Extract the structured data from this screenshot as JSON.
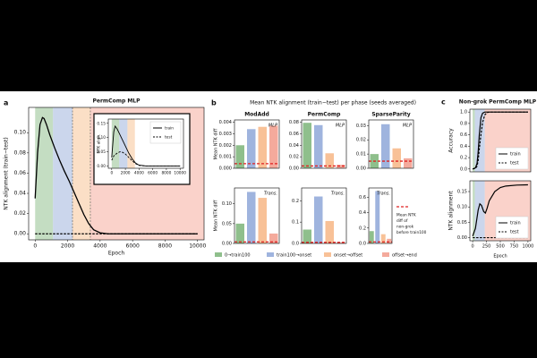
{
  "chart_data": [
    {
      "type": "line",
      "panel_label": "a",
      "title": "PermComp MLP",
      "xlabel": "Epoch",
      "ylabel": "NTK alignment (train−test)",
      "xlim": [
        -400,
        10400
      ],
      "ylim": [
        -0.006,
        0.125
      ],
      "xticks": [
        0,
        2000,
        4000,
        6000,
        8000,
        10000
      ],
      "yticks": [
        {
          "value": 0,
          "label": "0.00"
        },
        0.02,
        0.04,
        0.06,
        0.08,
        {
          "value": 0.1,
          "label": "0.10"
        }
      ],
      "phase_bounds": [
        0,
        1100,
        2300,
        3400,
        10400
      ],
      "phase_colors": [
        "#9cc69a",
        "#a9badf",
        "#f9c9a0",
        "#f7b4a6"
      ],
      "vlines": [
        2300,
        3400
      ],
      "series": [
        {
          "color": "#000000",
          "style": "solid",
          "x": [
            0,
            150,
            300,
            450,
            550,
            700,
            900,
            1200,
            1500,
            1800,
            2100,
            2400,
            2700,
            3000,
            3300,
            3600,
            4000,
            4500,
            5000,
            6000,
            8000,
            10000
          ],
          "values": [
            0.035,
            0.08,
            0.108,
            0.115,
            0.114,
            0.108,
            0.098,
            0.085,
            0.073,
            0.062,
            0.052,
            0.041,
            0.03,
            0.019,
            0.01,
            0.004,
            0.001,
            0,
            0,
            0,
            0,
            0
          ]
        },
        {
          "color": "#000000",
          "style": "dashed",
          "x": [
            0,
            2000,
            4000,
            10000
          ],
          "values": [
            0,
            0,
            0,
            0
          ]
        }
      ]
    },
    {
      "type": "line",
      "ylabel": "NTK align.",
      "legend": "upper right",
      "xlim": [
        -500,
        10500
      ],
      "ylim": [
        -0.008,
        0.165
      ],
      "xticks": [
        0,
        2000,
        4000,
        6000,
        8000,
        10000
      ],
      "yticks": [
        {
          "value": 0,
          "label": "0.00"
        },
        0.05,
        {
          "value": 0.1,
          "label": "0.10"
        },
        0.15
      ],
      "phase_bounds": [
        0,
        1100,
        2300,
        3400,
        10500
      ],
      "phase_colors": [
        "#9cc69a",
        "#a9badf",
        "#f9c9a0",
        "#ffffff"
      ],
      "series": [
        {
          "name": "train",
          "color": "#000000",
          "style": "solid",
          "x": [
            0,
            300,
            500,
            800,
            1200,
            1600,
            2000,
            2500,
            3000,
            3500,
            4000,
            5000,
            6000,
            8000,
            10000
          ],
          "values": [
            0.03,
            0.12,
            0.14,
            0.13,
            0.11,
            0.09,
            0.07,
            0.045,
            0.025,
            0.01,
            0.003,
            0,
            0,
            0,
            0
          ]
        },
        {
          "name": "test",
          "color": "#000000",
          "style": "dashed",
          "x": [
            0,
            300,
            500,
            800,
            1200,
            1600,
            2000,
            2500,
            3000,
            3500,
            4000,
            5000,
            6000,
            8000,
            10000
          ],
          "values": [
            0.02,
            0.035,
            0.04,
            0.045,
            0.05,
            0.048,
            0.042,
            0.03,
            0.018,
            0.008,
            0.002,
            0,
            0,
            0,
            0
          ]
        }
      ]
    },
    {
      "type": "bar",
      "panel_label": "b",
      "title": "Mean NTK alignment (train−test) per phase (seeds averaged)",
      "categories": [
        "0→train100",
        "train100→onset",
        "onset→offset",
        "offset→end"
      ],
      "colors": [
        "#8fbf8c",
        "#9fb4de",
        "#f8c197",
        "#f4aa9c"
      ],
      "baseline_color": "#e02020",
      "baseline_label": [
        "Mean NTK",
        "diff of",
        "non-grok",
        "before train100"
      ],
      "subplots": [
        {
          "title": "ModAdd",
          "tag": "MLP",
          "ylabel": "Mean NTK diff",
          "ylim": [
            0,
            0.0042
          ],
          "yticks": [
            {
              "value": 0,
              "label": "0.000"
            },
            0.001,
            0.002,
            0.003,
            0.004
          ],
          "values": [
            0.002,
            0.0034,
            0.0036,
            0.0037
          ],
          "baseline": 0.0004
        },
        {
          "title": "PermComp",
          "tag": "MLP",
          "ylim": [
            0,
            0.084
          ],
          "yticks": [
            {
              "value": 0,
              "label": "0.00"
            },
            0.02,
            0.04,
            0.06,
            0.08
          ],
          "values": [
            0.079,
            0.075,
            0.026,
            0.006
          ],
          "baseline": 0.004
        },
        {
          "title": "SparseParity",
          "tag": "MLP",
          "ylim": [
            0,
            0.034
          ],
          "yticks": [
            {
              "value": 0,
              "label": "0.00"
            },
            0.01,
            0.02,
            0.03
          ],
          "values": [
            0.01,
            0.031,
            0.014,
            0.007
          ],
          "baseline": 0.005
        },
        {
          "tag": "Trans.",
          "ylabel": "Mean NTK diff",
          "ylim": [
            0,
            0.14
          ],
          "yticks": [
            {
              "value": 0,
              "label": "0.00"
            },
            0.05,
            {
              "value": 0.1,
              "label": "0.10"
            }
          ],
          "values": [
            0.05,
            0.13,
            0.115,
            0.025
          ],
          "baseline": 0.004
        },
        {
          "tag": "Trans.",
          "ylim": [
            0,
            0.26
          ],
          "yticks": [
            {
              "value": 0,
              "label": "0.0"
            },
            0.1,
            0.2
          ],
          "values": [
            0.065,
            0.22,
            0.105,
            0.005
          ],
          "baseline": 0.005
        },
        {
          "tag": "Trans.",
          "ylim": [
            0,
            0.72
          ],
          "yticks": [
            {
              "value": 0,
              "label": "0.0"
            },
            0.2,
            0.4,
            0.6
          ],
          "values": [
            0.16,
            0.68,
            0.12,
            0.06
          ],
          "baseline": 0.02
        }
      ]
    },
    {
      "type": "line",
      "panel_label": "c",
      "title": "Non-grok PermComp MLP",
      "ylabel": "Accuracy",
      "legend": "lower right",
      "xlim": [
        -50,
        1050
      ],
      "ylim": [
        -0.05,
        1.05
      ],
      "yticks": [
        {
          "value": 0,
          "label": "0.0"
        },
        0.2,
        0.4,
        0.6,
        0.8,
        {
          "value": 1,
          "label": "1.0"
        }
      ],
      "phase_bounds": [
        0,
        40,
        220,
        1050
      ],
      "phase_colors": [
        "#9cc69a",
        "#a9badf",
        "#f7b4a6"
      ],
      "series": [
        {
          "name": "train",
          "color": "#000000",
          "style": "solid",
          "x": [
            0,
            50,
            80,
            100,
            120,
            150,
            180,
            220,
            260,
            300,
            500,
            1000
          ],
          "values": [
            0,
            0.02,
            0.1,
            0.3,
            0.6,
            0.9,
            0.98,
            1,
            1,
            1,
            1,
            1
          ]
        },
        {
          "name": "test",
          "color": "#000000",
          "style": "dashed",
          "x": [
            0,
            50,
            80,
            100,
            120,
            150,
            180,
            220,
            260,
            300,
            500,
            1000
          ],
          "values": [
            0,
            0.01,
            0.05,
            0.15,
            0.35,
            0.6,
            0.82,
            0.95,
            0.99,
            1,
            1,
            1
          ]
        }
      ]
    },
    {
      "type": "line",
      "ylabel": "NTK alignment",
      "xlabel": "Epoch",
      "legend": "lower right",
      "xlim": [
        -50,
        1050
      ],
      "ylim": [
        -0.01,
        0.185
      ],
      "xticks": [
        0,
        250,
        500,
        750,
        1000
      ],
      "yticks": [
        {
          "value": 0,
          "label": "0.00"
        },
        0.05,
        {
          "value": 0.1,
          "label": "0.10"
        },
        0.15
      ],
      "phase_bounds": [
        0,
        40,
        220,
        1050
      ],
      "phase_colors": [
        "#9cc69a",
        "#a9badf",
        "#f7b4a6"
      ],
      "series": [
        {
          "name": "train",
          "color": "#000000",
          "style": "solid",
          "x": [
            0,
            50,
            100,
            130,
            160,
            200,
            230,
            260,
            300,
            400,
            500,
            600,
            800,
            1000
          ],
          "values": [
            0.005,
            0.03,
            0.09,
            0.11,
            0.105,
            0.085,
            0.08,
            0.095,
            0.12,
            0.15,
            0.163,
            0.168,
            0.171,
            0.172
          ]
        },
        {
          "name": "test",
          "color": "#000000",
          "style": "dashed",
          "x": [
            0,
            1000
          ],
          "values": [
            0,
            0
          ]
        }
      ]
    }
  ]
}
